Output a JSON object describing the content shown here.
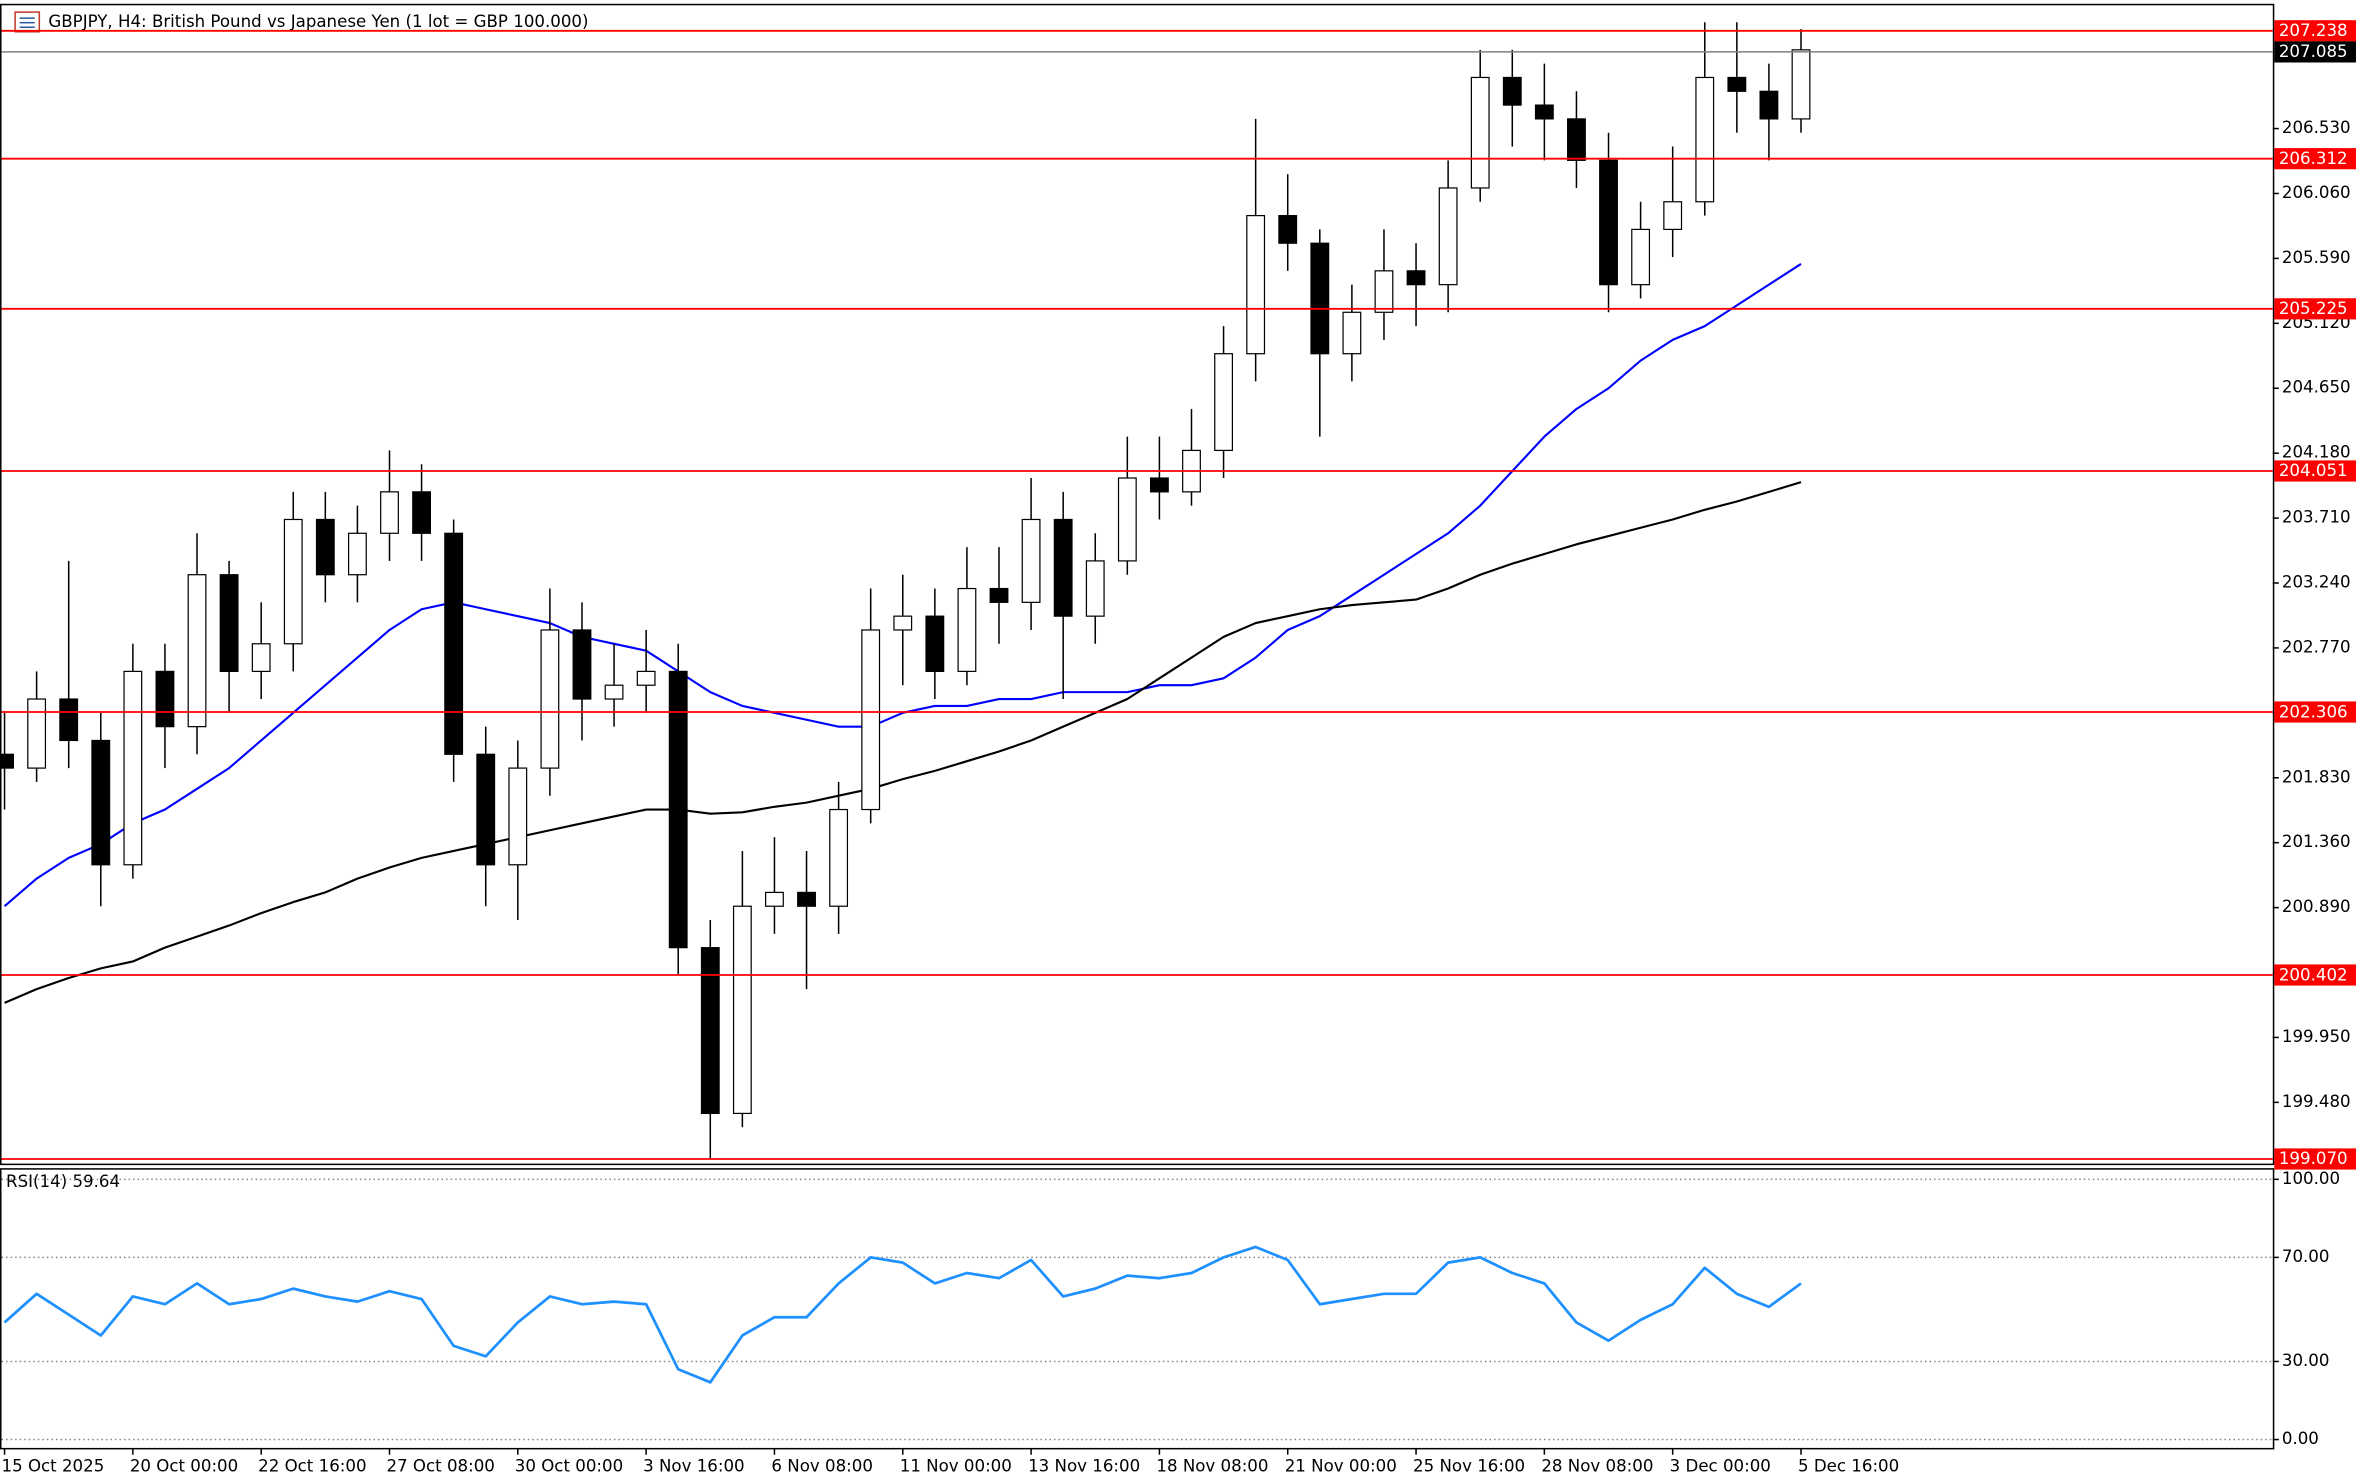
{
  "chart_data": [
    {
      "type": "candlestick",
      "title": "GBPJPY, H4:  British Pound vs Japanese Yen (1 lot = GBP 100.000)",
      "open": [
        202.0,
        201.9,
        202.4,
        202.1,
        201.2,
        202.6,
        202.2,
        203.3,
        202.6,
        202.8,
        203.7,
        203.3,
        203.6,
        203.9,
        203.6,
        202.0,
        201.2,
        201.9,
        202.9,
        202.4,
        202.5,
        202.6,
        200.6,
        199.4,
        200.9,
        201.0,
        200.9,
        201.6,
        202.9,
        203.0,
        202.6,
        203.2,
        203.1,
        203.7,
        203.0,
        203.4,
        204.0,
        203.9,
        204.2,
        204.9,
        205.9,
        205.7,
        204.9,
        205.2,
        205.5,
        205.4,
        206.1,
        206.9,
        206.7,
        206.6,
        206.3,
        205.4,
        205.8,
        206.0,
        206.9,
        206.8,
        206.6
      ],
      "high": [
        202.3,
        202.6,
        203.4,
        202.3,
        202.8,
        202.8,
        203.6,
        203.4,
        203.1,
        203.9,
        203.9,
        203.8,
        204.2,
        204.1,
        203.7,
        202.2,
        202.1,
        203.2,
        203.1,
        202.8,
        202.9,
        202.8,
        200.8,
        201.3,
        201.4,
        201.3,
        201.8,
        203.2,
        203.3,
        203.2,
        203.5,
        203.5,
        204.0,
        203.9,
        203.6,
        204.3,
        204.3,
        204.5,
        205.1,
        206.6,
        206.2,
        205.8,
        205.4,
        205.8,
        205.7,
        206.3,
        207.1,
        207.1,
        207.0,
        206.8,
        206.5,
        206.0,
        206.4,
        207.3,
        207.3,
        207.0,
        207.25
      ],
      "low": [
        201.6,
        201.8,
        201.9,
        200.9,
        201.1,
        201.9,
        202.0,
        202.3,
        202.4,
        202.6,
        203.1,
        203.1,
        203.4,
        203.4,
        201.8,
        200.9,
        200.8,
        201.7,
        202.1,
        202.2,
        202.3,
        200.4,
        199.07,
        199.3,
        200.7,
        200.3,
        200.7,
        201.5,
        202.5,
        202.4,
        202.5,
        202.8,
        202.9,
        202.4,
        202.8,
        203.3,
        203.7,
        203.8,
        204.0,
        204.7,
        205.5,
        204.3,
        204.7,
        205.0,
        205.1,
        205.2,
        206.0,
        206.4,
        206.3,
        206.1,
        205.2,
        205.3,
        205.6,
        205.9,
        206.5,
        206.3,
        206.5
      ],
      "close": [
        201.9,
        202.4,
        202.1,
        201.2,
        202.6,
        202.2,
        203.3,
        202.6,
        202.8,
        203.7,
        203.3,
        203.6,
        203.9,
        203.6,
        202.0,
        201.2,
        201.9,
        202.9,
        202.4,
        202.5,
        202.6,
        200.6,
        199.4,
        200.9,
        201.0,
        200.9,
        201.6,
        202.9,
        203.0,
        202.6,
        203.2,
        203.1,
        203.7,
        203.0,
        203.4,
        204.0,
        203.9,
        204.2,
        204.9,
        205.9,
        205.7,
        204.9,
        205.2,
        205.5,
        205.4,
        206.1,
        206.9,
        206.7,
        206.6,
        206.3,
        205.4,
        205.8,
        206.0,
        206.9,
        206.8,
        206.6,
        207.1
      ],
      "up_color": "#ffffff",
      "down_color": "#000000",
      "series": [
        {
          "color": "#0000ff",
          "values": [
            200.9,
            201.1,
            201.25,
            201.35,
            201.5,
            201.6,
            201.75,
            201.9,
            202.1,
            202.3,
            202.5,
            202.7,
            202.9,
            203.05,
            203.1,
            203.05,
            203.0,
            202.95,
            202.85,
            202.8,
            202.75,
            202.6,
            202.45,
            202.35,
            202.3,
            202.25,
            202.2,
            202.2,
            202.3,
            202.35,
            202.35,
            202.4,
            202.4,
            202.45,
            202.45,
            202.45,
            202.5,
            202.5,
            202.55,
            202.7,
            202.9,
            203.0,
            203.15,
            203.3,
            203.45,
            203.6,
            203.8,
            204.05,
            204.3,
            204.5,
            204.65,
            204.85,
            205.0,
            205.1,
            205.25,
            205.4,
            205.55
          ]
        },
        {
          "color": "#000000",
          "values": [
            200.2,
            200.3,
            200.38,
            200.45,
            200.5,
            200.6,
            200.68,
            200.76,
            200.85,
            200.93,
            201.0,
            201.1,
            201.18,
            201.25,
            201.3,
            201.35,
            201.4,
            201.45,
            201.5,
            201.55,
            201.6,
            201.6,
            201.57,
            201.58,
            201.62,
            201.65,
            201.7,
            201.75,
            201.82,
            201.88,
            201.95,
            202.02,
            202.1,
            202.2,
            202.3,
            202.4,
            202.55,
            202.7,
            202.85,
            202.95,
            203.0,
            203.05,
            203.08,
            203.1,
            203.12,
            203.2,
            203.3,
            203.38,
            203.45,
            203.52,
            203.58,
            203.64,
            203.7,
            203.77,
            203.83,
            203.9,
            203.97
          ]
        }
      ],
      "xlim": [
        0,
        56
      ],
      "ylim": [
        199.031,
        207.428
      ],
      "yticks": [
        {
          "value": 206.53,
          "label": "206.530"
        },
        {
          "value": 206.06,
          "label": "206.060"
        },
        {
          "value": 205.59,
          "label": "205.590"
        },
        {
          "value": 205.12,
          "label": "205.120"
        },
        {
          "value": 204.65,
          "label": "204.650"
        },
        {
          "value": 204.18,
          "label": "204.180"
        },
        {
          "value": 203.71,
          "label": "203.710"
        },
        {
          "value": 203.24,
          "label": "203.240"
        },
        {
          "value": 202.77,
          "label": "202.770"
        },
        {
          "value": 202.3,
          "label": "202.300"
        },
        {
          "value": 201.83,
          "label": "201.830"
        },
        {
          "value": 201.36,
          "label": "201.360"
        },
        {
          "value": 200.89,
          "label": "200.890"
        },
        {
          "value": 200.42,
          "label": "200.420"
        },
        {
          "value": 199.95,
          "label": "199.950"
        },
        {
          "value": 199.48,
          "label": "199.480"
        }
      ],
      "grid": false,
      "levels": [
        207.238,
        206.312,
        205.225,
        204.051,
        202.306,
        200.402,
        {
          "value": 199.07,
          "label": "199.070"
        }
      ],
      "level_color": "#ff0000",
      "last_price": 207.085,
      "last_price_color": "#000000"
    },
    {
      "type": "line",
      "title": "RSI(14) 59.64",
      "values": [
        45,
        56,
        48,
        40,
        55,
        52,
        60,
        52,
        54,
        58,
        55,
        53,
        57,
        54,
        36,
        32,
        45,
        55,
        52,
        53,
        52,
        27,
        22,
        40,
        47,
        47,
        60,
        70,
        68,
        60,
        64,
        62,
        69,
        55,
        58,
        63,
        62,
        64,
        70,
        74,
        69,
        52,
        54,
        56,
        56,
        68,
        70,
        64,
        60,
        45,
        38,
        46,
        52,
        66,
        56,
        51,
        60
      ],
      "color": "#1e90ff",
      "xlim": [
        0,
        56
      ],
      "ylim": [
        -3.5,
        104
      ],
      "yticks": [
        {
          "value": 100,
          "label": "100.00"
        },
        {
          "value": 70,
          "label": "70.00"
        },
        {
          "value": 30,
          "label": "30.00"
        },
        {
          "value": 0,
          "label": "0.00"
        }
      ],
      "grid": true,
      "xticks": [
        {
          "value": 0,
          "label": "15 Oct 2025"
        },
        {
          "value": 4,
          "label": "20 Oct 00:00"
        },
        {
          "value": 8,
          "label": "22 Oct 16:00"
        },
        {
          "value": 12,
          "label": "27 Oct 08:00"
        },
        {
          "value": 16,
          "label": "30 Oct 00:00"
        },
        {
          "value": 20,
          "label": "3 Nov 16:00"
        },
        {
          "value": 24,
          "label": "6 Nov 08:00"
        },
        {
          "value": 28,
          "label": "11 Nov 00:00"
        },
        {
          "value": 32,
          "label": "13 Nov 16:00"
        },
        {
          "value": 36,
          "label": "18 Nov 08:00"
        },
        {
          "value": 40,
          "label": "21 Nov 00:00"
        },
        {
          "value": 44,
          "label": "25 Nov 16:00"
        },
        {
          "value": 48,
          "label": "28 Nov 08:00"
        },
        {
          "value": 52,
          "label": "3 Dec 00:00"
        },
        {
          "value": 56,
          "label": "5 Dec 16:00"
        }
      ]
    }
  ]
}
